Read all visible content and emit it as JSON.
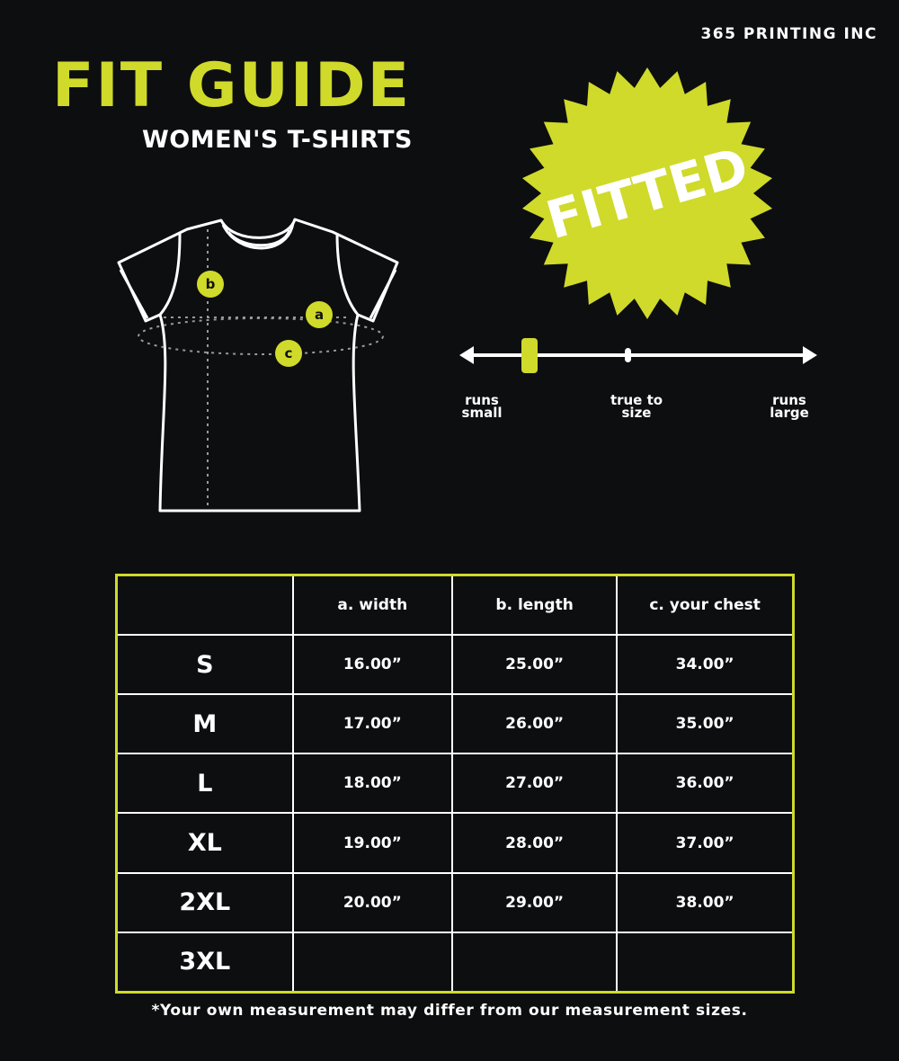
{
  "brand": "365 PRINTING INC",
  "title": "FIT GUIDE",
  "subtitle": "WOMEN'S T-SHIRTS",
  "badge": {
    "text": "FITTED",
    "color": "#cfda2a"
  },
  "diagram_labels": {
    "a": "a",
    "b": "b",
    "c": "c"
  },
  "fit_scale": {
    "labels": {
      "small": "runs small",
      "true": "true to size",
      "large": "runs large"
    },
    "fit_position": 0.18
  },
  "table": {
    "headers": [
      "",
      "a. width",
      "b. length",
      "c. your chest"
    ],
    "rows": [
      {
        "size": "S",
        "width": "16.00”",
        "length": "25.00”",
        "chest": "34.00”"
      },
      {
        "size": "M",
        "width": "17.00”",
        "length": "26.00”",
        "chest": "35.00”"
      },
      {
        "size": "L",
        "width": "18.00”",
        "length": "27.00”",
        "chest": "36.00”"
      },
      {
        "size": "XL",
        "width": "19.00”",
        "length": "28.00”",
        "chest": "37.00”"
      },
      {
        "size": "2XL",
        "width": "20.00”",
        "length": "29.00”",
        "chest": "38.00”"
      },
      {
        "size": "3XL",
        "width": "",
        "length": "",
        "chest": ""
      }
    ]
  },
  "note": "*Your own measurement may differ from our measurement sizes.",
  "colors": {
    "accent": "#cfda2a",
    "background": "#0d0e10"
  }
}
